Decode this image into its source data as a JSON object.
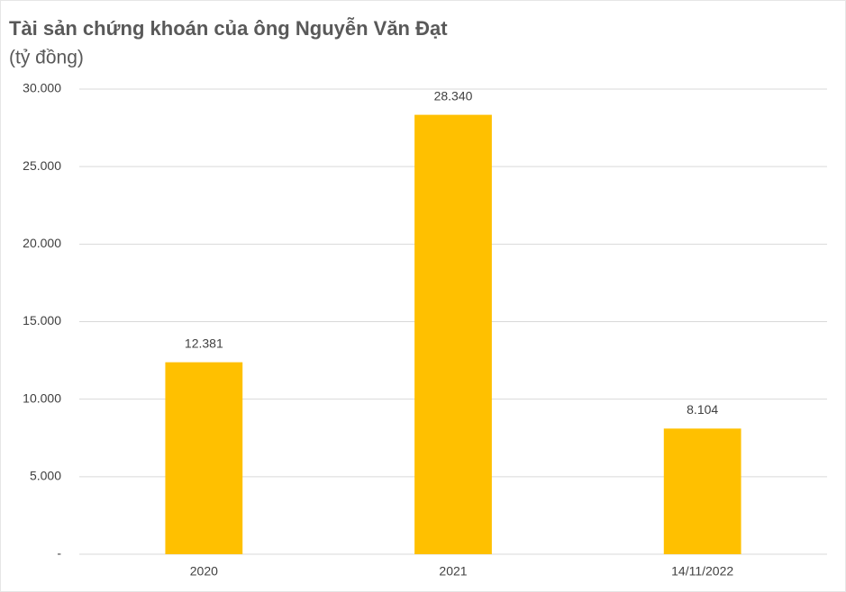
{
  "chart_data": {
    "type": "bar",
    "title": "Tài sản chứng khoán của ông Nguyễn Văn Đạt",
    "subtitle": "(tỷ đồng)",
    "categories": [
      "2020",
      "2021",
      "14/11/2022"
    ],
    "values": [
      12381,
      28340,
      8104
    ],
    "value_labels": [
      "12.381",
      "28.340",
      "8.104"
    ],
    "color": "#ffc000",
    "ylim": [
      0,
      30000
    ],
    "yticks": [
      {
        "value": 0,
        "label": "-"
      },
      {
        "value": 5000,
        "label": "5.000"
      },
      {
        "value": 10000,
        "label": "10.000"
      },
      {
        "value": 15000,
        "label": "15.000"
      },
      {
        "value": 20000,
        "label": "20.000"
      },
      {
        "value": 25000,
        "label": "25.000"
      },
      {
        "value": 30000,
        "label": "30.000"
      }
    ],
    "grid": true
  }
}
